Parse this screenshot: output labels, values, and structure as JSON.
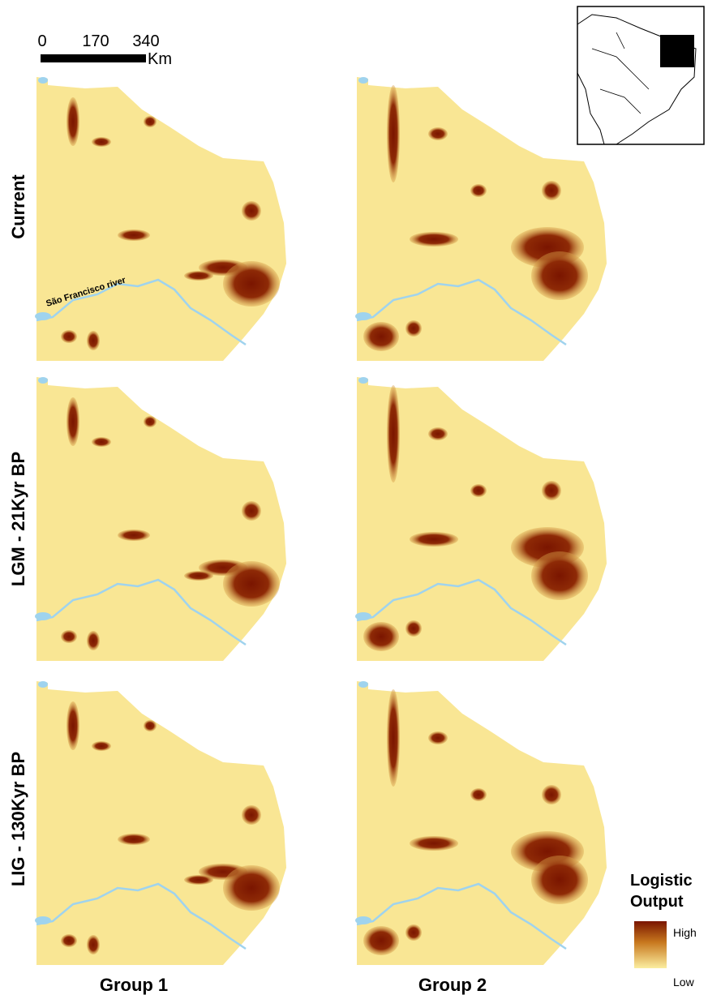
{
  "scale_bar": {
    "ticks": [
      "0",
      "170",
      "340"
    ],
    "unit": "Km"
  },
  "rows": [
    "Current",
    "LGM - 21Kyr BP",
    "LIG - 130Kyr BP"
  ],
  "columns": [
    "Group 1",
    "Group 2"
  ],
  "river_label": "São Francisco river",
  "legend": {
    "title": [
      "Logistic",
      "Output"
    ],
    "high": "High",
    "low": "Low"
  }
}
